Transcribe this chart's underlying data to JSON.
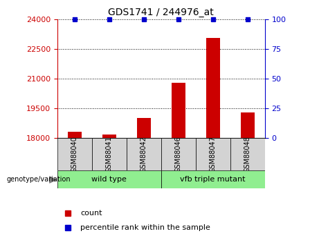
{
  "title": "GDS1741 / 244976_at",
  "categories": [
    "GSM88040",
    "GSM88041",
    "GSM88042",
    "GSM88046",
    "GSM88047",
    "GSM88048"
  ],
  "counts": [
    18320,
    18190,
    19020,
    20800,
    23050,
    19300
  ],
  "percentiles": [
    100,
    100,
    100,
    100,
    100,
    100
  ],
  "ylim_left": [
    18000,
    24000
  ],
  "ylim_right": [
    0,
    100
  ],
  "yticks_left": [
    18000,
    19500,
    21000,
    22500,
    24000
  ],
  "yticks_right": [
    0,
    25,
    50,
    75,
    100
  ],
  "bar_color": "#cc0000",
  "dot_color": "#0000cc",
  "tick_label_color_left": "#cc0000",
  "tick_label_color_right": "#0000cc",
  "dotted_grid_color": "#000000",
  "bar_width": 0.4,
  "x_positions": [
    1,
    2,
    3,
    4,
    5,
    6
  ],
  "wt_label": "wild type",
  "vfb_label": "vfb triple mutant",
  "group_color": "#90ee90",
  "genotype_label": "genotype/variation",
  "legend_count": "count",
  "legend_pct": "percentile rank within the sample",
  "cell_color": "#d3d3d3"
}
